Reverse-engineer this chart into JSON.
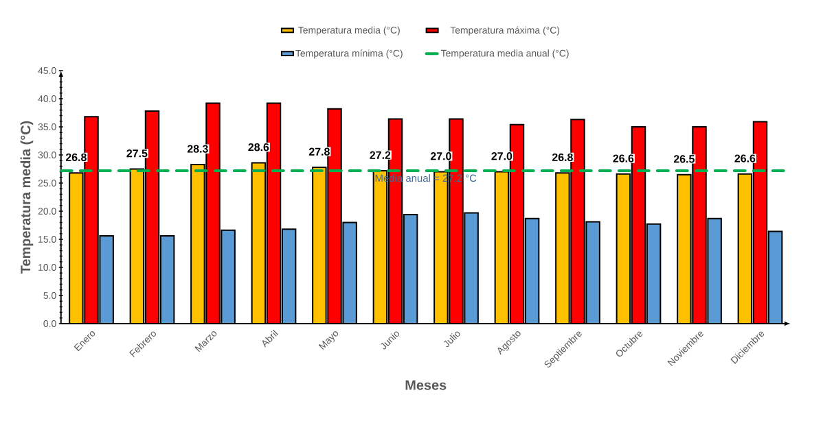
{
  "chart_data": {
    "type": "bar",
    "xlabel": "Meses",
    "ylabel": "Temperatura media  (°C)",
    "categories": [
      "Enero",
      "Febrero",
      "Marzo",
      "Abril",
      "Mayo",
      "Junio",
      "Julio",
      "Agosto",
      "Septiembre",
      "Octubre",
      "Noviembre",
      "Diciembre"
    ],
    "series": [
      {
        "name": "Temperatura media (°C)",
        "color": "#ffc000",
        "values": [
          26.8,
          27.5,
          28.3,
          28.6,
          27.8,
          27.2,
          27.0,
          27.0,
          26.8,
          26.6,
          26.5,
          26.6
        ],
        "value_labels": [
          "26.8",
          "27.5",
          "28.3",
          "28.6",
          "27.8",
          "27.2",
          "27.0",
          "27.0",
          "26.8",
          "26.6",
          "26.5",
          "26.6"
        ]
      },
      {
        "name": "Temperatura máxima (°C)",
        "color": "#ff0000",
        "values": [
          36.8,
          37.8,
          39.2,
          39.2,
          38.2,
          36.4,
          36.4,
          35.4,
          36.3,
          35.0,
          35.0,
          35.9
        ]
      },
      {
        "name": "Temperatura mínima (°C)",
        "color": "#5b9bd5",
        "values": [
          15.6,
          15.6,
          16.6,
          16.8,
          18.0,
          19.4,
          19.7,
          18.7,
          18.1,
          17.7,
          18.7,
          16.4
        ]
      }
    ],
    "ref_lines": [
      {
        "axis": "y",
        "value": 27.2,
        "label": "Temperatura media anual (°C)",
        "color": "#00b050",
        "line_style": "dashed"
      }
    ],
    "annotations": [
      "Media anual = 27.2 °C"
    ],
    "ylim": [
      0,
      45
    ],
    "yticks": [
      {
        "value": 0,
        "label": "0.0"
      },
      {
        "value": 5,
        "label": "5.0"
      },
      {
        "value": 10,
        "label": "10.0"
      },
      {
        "value": 15,
        "label": "15.0"
      },
      {
        "value": 20,
        "label": "20.0"
      },
      {
        "value": 25,
        "label": "25.0"
      },
      {
        "value": 30,
        "label": "30.0"
      },
      {
        "value": 35,
        "label": "35.0"
      },
      {
        "value": 40,
        "label": "40.0"
      },
      {
        "value": 45,
        "label": "45.0"
      }
    ],
    "grid": false,
    "legend": "top"
  }
}
